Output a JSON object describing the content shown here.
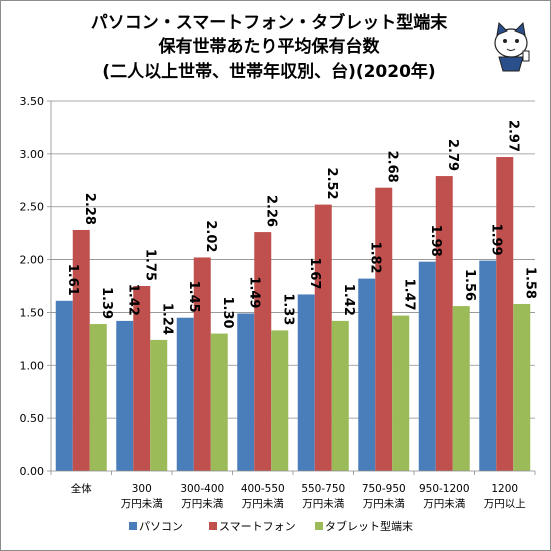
{
  "chart_data": {
    "type": "bar",
    "title_lines": [
      "パソコン・スマートフォン・タブレット型端末",
      "保有世帯あたり平均保有台数",
      "(二人以上世帯、世帯年収別、台)(2020年)"
    ],
    "categories": [
      [
        "全体"
      ],
      [
        "300",
        "万円未満"
      ],
      [
        "300-400",
        "万円未満"
      ],
      [
        "400-550",
        "万円未満"
      ],
      [
        "550-750",
        "万円未満"
      ],
      [
        "750-950",
        "万円未満"
      ],
      [
        "950-1200",
        "万円未満"
      ],
      [
        "1200",
        "万円以上"
      ]
    ],
    "series": [
      {
        "name": "パソコン",
        "color": "#4a7ebb",
        "values": [
          1.61,
          1.42,
          1.45,
          1.49,
          1.67,
          1.82,
          1.98,
          1.99
        ],
        "labels": [
          "1.61",
          "1.42",
          "1.45",
          "1.49",
          "1.67",
          "1.82",
          "1.98",
          "1.99"
        ]
      },
      {
        "name": "スマートフォン",
        "color": "#c0504d",
        "values": [
          2.28,
          1.75,
          2.02,
          2.26,
          2.52,
          2.68,
          2.79,
          2.97
        ],
        "labels": [
          "2.28",
          "1.75",
          "2.02",
          "2.26",
          "2.52",
          "2.68",
          "2.79",
          "2.97"
        ]
      },
      {
        "name": "タブレット型端末",
        "color": "#9bbb59",
        "values": [
          1.39,
          1.24,
          1.3,
          1.33,
          1.42,
          1.47,
          1.56,
          1.58
        ],
        "labels": [
          "1.39",
          "1.24",
          "1.30",
          "1.33",
          "1.42",
          "1.47",
          "1.56",
          "1.58"
        ]
      }
    ],
    "ylim": [
      0,
      3.5
    ],
    "yticks": [
      "0.00",
      "0.50",
      "1.00",
      "1.50",
      "2.00",
      "2.50",
      "3.00",
      "3.50"
    ],
    "grid": true,
    "legend_position": "bottom",
    "data_labels_rotated": true
  },
  "mascot_icon": "cat-mascot-icon"
}
